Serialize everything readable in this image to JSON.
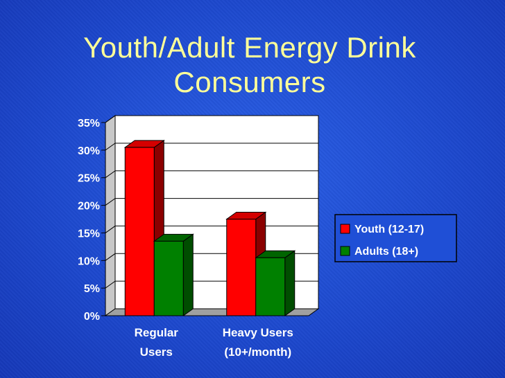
{
  "title_lines": [
    "Youth/Adult Energy Drink",
    "Consumers"
  ],
  "chart_data": {
    "type": "bar",
    "title": "Youth/Adult Energy Drink Consumers",
    "categories": [
      [
        "Regular",
        "Users"
      ],
      [
        "Heavy Users",
        "(10+/month)"
      ]
    ],
    "series": [
      {
        "name": "Youth (12-17)",
        "values": [
          30.5,
          17.5
        ],
        "color": "#ff0000",
        "side": "#8b0000",
        "top": "#d40000"
      },
      {
        "name": "Adults (18+)",
        "values": [
          13.5,
          10.5
        ],
        "color": "#008000",
        "side": "#004d00",
        "top": "#006400"
      }
    ],
    "ylim": [
      0,
      35
    ],
    "yticks": [
      "0%",
      "5%",
      "10%",
      "15%",
      "20%",
      "25%",
      "30%",
      "35%"
    ],
    "grid": true,
    "legend": "right",
    "three_d": true
  }
}
